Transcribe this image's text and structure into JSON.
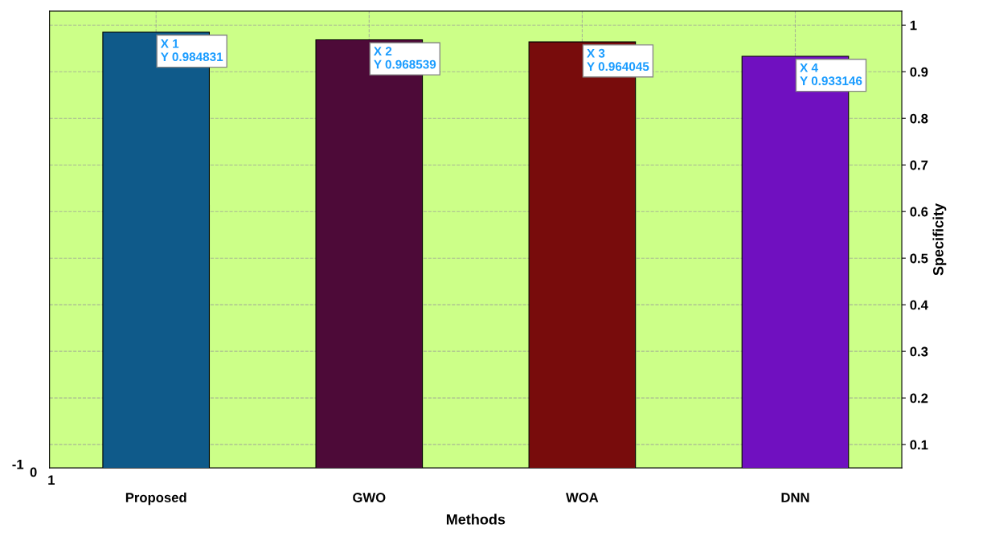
{
  "chart_data": {
    "type": "bar",
    "xlabel": "Methods",
    "ylabel": "Specificity",
    "categories": [
      "Proposed",
      "GWO",
      "WOA",
      "DNN"
    ],
    "values": [
      0.984831,
      0.968539,
      0.964045,
      0.933146
    ],
    "value_labels": [
      "X 1\nY 0.984831",
      "X 2\nY 0.968539",
      "X 3\nY 0.964045",
      "X 4\nY 0.933146"
    ],
    "colors": [
      "#0f5a8a",
      "#4d0a38",
      "#780c0c",
      "#7010c0"
    ],
    "ylim": [
      0.05,
      1.03
    ],
    "yticks": [
      0.1,
      0.2,
      0.3,
      0.4,
      0.5,
      0.6,
      0.7,
      0.8,
      0.9,
      1
    ],
    "grid": true,
    "annotations": [
      "-1",
      "0",
      "1"
    ]
  }
}
